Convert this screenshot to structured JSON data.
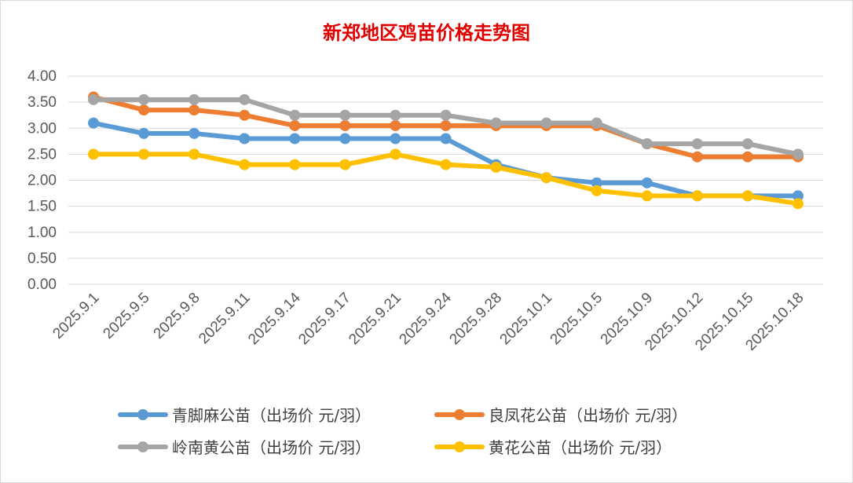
{
  "chart_data": {
    "type": "line",
    "title": "新郑地区鸡苗价格走势图",
    "xlabel": "",
    "ylabel": "",
    "ylim": [
      0,
      4
    ],
    "yticks": [
      "0.00",
      "0.50",
      "1.00",
      "1.50",
      "2.00",
      "2.50",
      "3.00",
      "3.50",
      "4.00"
    ],
    "grid": true,
    "legend_position": "bottom",
    "categories": [
      "2025.9.1",
      "2025.9.5",
      "2025.9.8",
      "2025.9.11",
      "2025.9.14",
      "2025.9.17",
      "2025.9.21",
      "2025.9.24",
      "2025.9.28",
      "2025.10.1",
      "2025.10.5",
      "2025.10.9",
      "2025.10.12",
      "2025.10.15",
      "2025.10.18"
    ],
    "series": [
      {
        "name": "青脚麻公苗（出场价 元/羽）",
        "color": "#5b9bd5",
        "values": [
          3.1,
          2.9,
          2.9,
          2.8,
          2.8,
          2.8,
          2.8,
          2.8,
          2.3,
          2.05,
          1.95,
          1.95,
          1.7,
          1.7,
          1.7
        ]
      },
      {
        "name": "良凤花公苗（出场价 元/羽）",
        "color": "#ed7d31",
        "values": [
          3.6,
          3.35,
          3.35,
          3.25,
          3.05,
          3.05,
          3.05,
          3.05,
          3.05,
          3.05,
          3.05,
          2.7,
          2.45,
          2.45,
          2.45
        ]
      },
      {
        "name": "岭南黄公苗（出场价 元/羽）",
        "color": "#a5a5a5",
        "values": [
          3.55,
          3.55,
          3.55,
          3.55,
          3.25,
          3.25,
          3.25,
          3.25,
          3.1,
          3.1,
          3.1,
          2.7,
          2.7,
          2.7,
          2.5
        ]
      },
      {
        "name": "黄花公苗（出场价 元/羽）",
        "color": "#ffc000",
        "values": [
          2.5,
          2.5,
          2.5,
          2.3,
          2.3,
          2.3,
          2.5,
          2.3,
          2.25,
          2.05,
          1.8,
          1.7,
          1.7,
          1.7,
          1.55
        ]
      }
    ]
  }
}
